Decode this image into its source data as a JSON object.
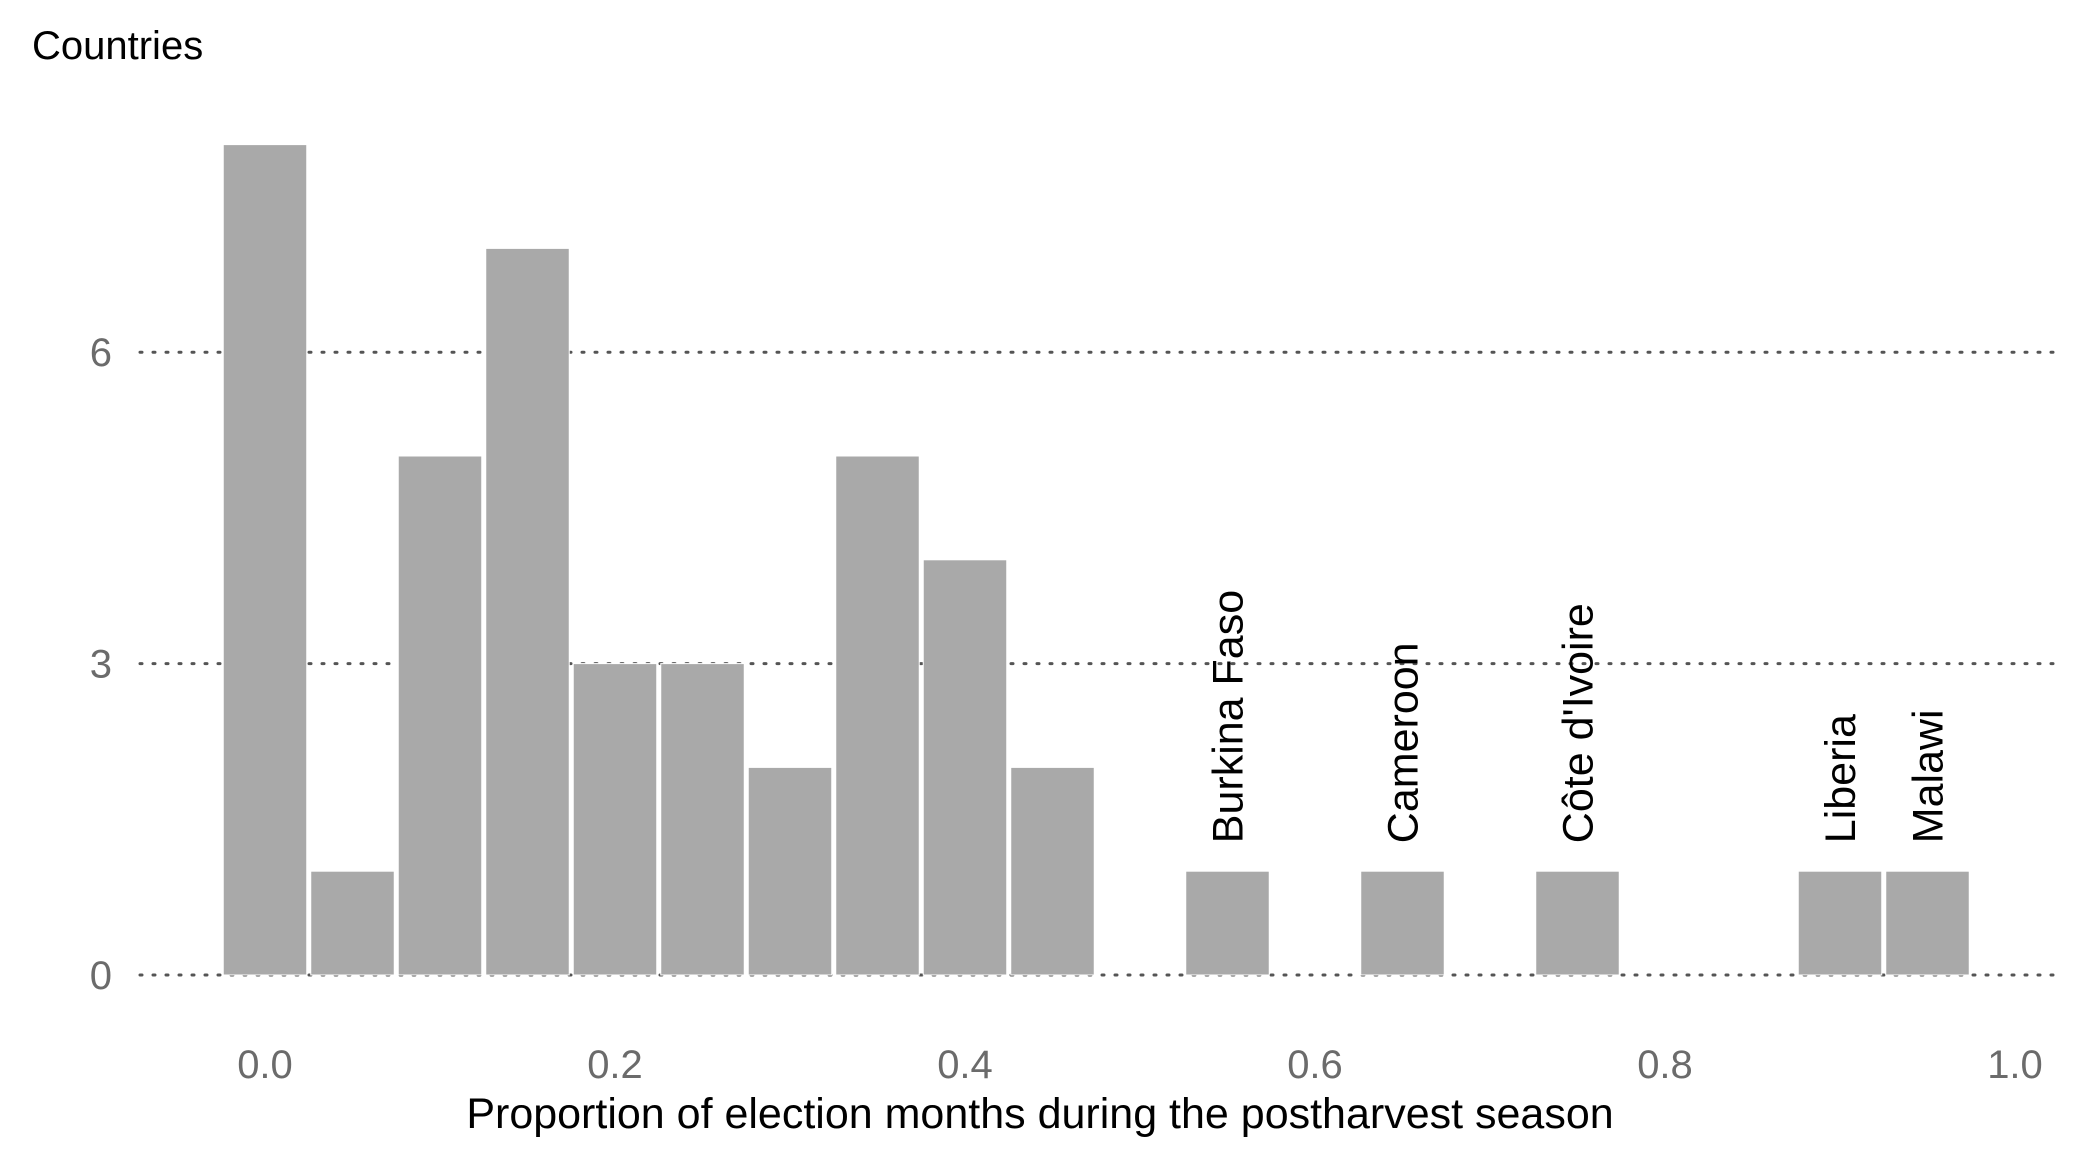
{
  "chart_data": {
    "type": "bar",
    "ylabel": "Countries",
    "xlabel": "Proportion of election months during the postharvest season",
    "xlim": [
      0.0,
      1.0
    ],
    "ylim": [
      0,
      8
    ],
    "x_ticks": [
      "0.0",
      "0.2",
      "0.4",
      "0.6",
      "0.8",
      "1.0"
    ],
    "y_ticks": [
      "0",
      "3",
      "6"
    ],
    "grid": "horizontal dotted",
    "bar_color": "#a9a9a9",
    "bins": [
      {
        "center": 0.0,
        "value": 8
      },
      {
        "center": 0.05,
        "value": 1
      },
      {
        "center": 0.1,
        "value": 5
      },
      {
        "center": 0.15,
        "value": 7
      },
      {
        "center": 0.2,
        "value": 3
      },
      {
        "center": 0.25,
        "value": 3
      },
      {
        "center": 0.3,
        "value": 2
      },
      {
        "center": 0.35,
        "value": 5
      },
      {
        "center": 0.4,
        "value": 4
      },
      {
        "center": 0.45,
        "value": 2
      },
      {
        "center": 0.55,
        "value": 1,
        "label": "Burkina Faso"
      },
      {
        "center": 0.65,
        "value": 1,
        "label": "Cameroon"
      },
      {
        "center": 0.75,
        "value": 1,
        "label": "Côte d'Ivoire"
      },
      {
        "center": 0.9,
        "value": 1,
        "label": "Liberia"
      },
      {
        "center": 0.95,
        "value": 1,
        "label": "Malawi"
      }
    ]
  }
}
